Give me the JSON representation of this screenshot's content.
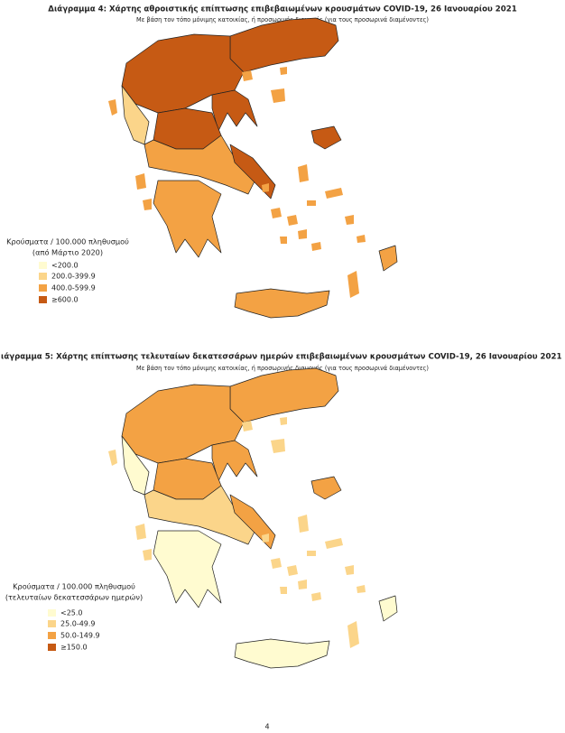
{
  "maps": [
    {
      "title": "Διάγραμμα 4: Χάρτης αθροιστικής επίπτωσης επιβεβαιωμένων κρουσμάτων COVID-19, 26 Ιανουαρίου 2021",
      "subtitle": "Με βάση τον τόπο μόνιμης κατοικίας, ή προσωρινής διαμονής (για τους προσωρινά διαμένοντες)",
      "legend": {
        "title": [
          "Κρούσματα / 100.000 πληθυσμού",
          "(από Μάρτιο 2020)"
        ],
        "items": [
          "<200.0",
          "200.0-399.9",
          "400.0-599.9",
          "≥600.0"
        ]
      }
    },
    {
      "title": "ιάγραμμα 5: Χάρτης επίπτωσης τελευταίων δεκατεσσάρων ημερών επιβεβαιωμένων κρουσμάτων COVID-19, 26 Ιανουαρίου 2021",
      "subtitle": "Με βάση τον τόπο μόνιμης κατοικίας, ή προσωρινής διαμονής (για τους προσωρινά διαμένοντες)",
      "legend": {
        "title": [
          "Κρούσματα / 100.000 πληθυσμού",
          "(τελευταίων δεκατεσσάρων ημερών)"
        ],
        "items": [
          "<25.0",
          "25.0-49.9",
          "50.0-149.9",
          "≥150.0"
        ]
      }
    }
  ],
  "page_number": "4"
}
